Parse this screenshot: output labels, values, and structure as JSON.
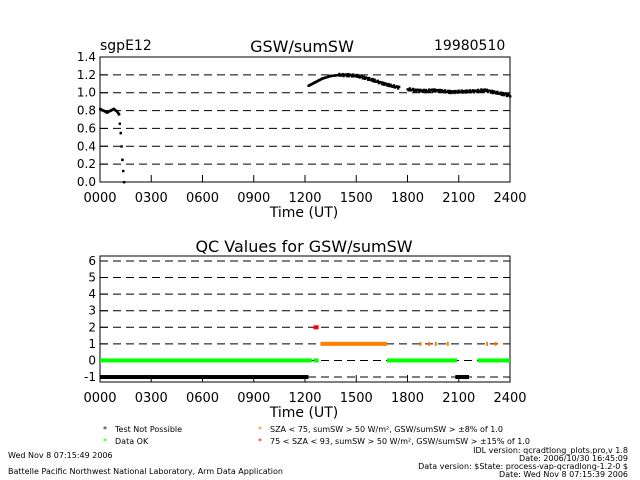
{
  "header": {
    "site": "sgpE12",
    "date": "19980510"
  },
  "chart_data": [
    {
      "type": "scatter",
      "title": "GSW/sumSW",
      "xlabel": "Time (UT)",
      "ylabel": "",
      "xlim": [
        0,
        2400
      ],
      "ylim": [
        0.0,
        1.4
      ],
      "x_tick_labels": [
        "0000",
        "0300",
        "0600",
        "0900",
        "1200",
        "1500",
        "1800",
        "2100",
        "2400"
      ],
      "y_tick_labels": [
        "0.0",
        "0.2",
        "0.4",
        "0.6",
        "0.8",
        "1.0",
        "1.2",
        "1.4"
      ],
      "grid": "horizontal dashed",
      "color": "#000000",
      "curve_knots": [
        [
          0,
          0.82
        ],
        [
          20,
          0.8
        ],
        [
          40,
          0.78
        ],
        [
          60,
          0.8
        ],
        [
          80,
          0.82
        ],
        [
          100,
          0.79
        ],
        [
          110,
          0.76
        ],
        [
          120,
          0.55
        ],
        [
          130,
          0.25
        ],
        [
          140,
          0.0
        ],
        [
          1220,
          1.08
        ],
        [
          1260,
          1.12
        ],
        [
          1300,
          1.16
        ],
        [
          1350,
          1.19
        ],
        [
          1400,
          1.2
        ],
        [
          1450,
          1.2
        ],
        [
          1500,
          1.19
        ],
        [
          1550,
          1.17
        ],
        [
          1600,
          1.14
        ],
        [
          1650,
          1.11
        ],
        [
          1700,
          1.08
        ],
        [
          1750,
          1.06
        ],
        [
          1800,
          1.04
        ],
        [
          1850,
          1.03
        ],
        [
          1900,
          1.02
        ],
        [
          1950,
          1.03
        ],
        [
          2000,
          1.02
        ],
        [
          2050,
          1.01
        ],
        [
          2200,
          1.02
        ],
        [
          2250,
          1.03
        ],
        [
          2300,
          1.01
        ],
        [
          2350,
          0.99
        ],
        [
          2400,
          0.97
        ]
      ]
    },
    {
      "type": "scatter",
      "title": "QC Values for GSW/sumSW",
      "xlabel": "Time (UT)",
      "ylabel": "",
      "xlim": [
        0,
        2400
      ],
      "ylim": [
        -1.3,
        6.3
      ],
      "x_tick_labels": [
        "0000",
        "0300",
        "0600",
        "0900",
        "1200",
        "1500",
        "1800",
        "2100",
        "2400"
      ],
      "y_tick_labels": [
        "-1",
        "0",
        "1",
        "2",
        "3",
        "4",
        "5",
        "6"
      ],
      "grid": "horizontal dashed",
      "series": [
        {
          "color": "#00ff00",
          "value": 0,
          "segments": [
            [
              0,
              1240
            ],
            [
              1250,
              1280
            ],
            [
              1680,
              2090
            ],
            [
              2210,
              2400
            ]
          ]
        },
        {
          "color": "#ff7f00",
          "value": 1,
          "segments": [
            [
              1290,
              1680
            ],
            [
              1870,
              1880
            ],
            [
              1920,
              1930
            ],
            [
              1960,
              1970
            ],
            [
              2030,
              2040
            ],
            [
              2260,
              2270
            ],
            [
              2310,
              2320
            ]
          ]
        },
        {
          "color": "#ff0000",
          "value": 2,
          "segments": [
            [
              1250,
              1280
            ]
          ]
        },
        {
          "color": "#000000",
          "value": -1,
          "segments": [
            [
              0,
              1220
            ],
            [
              2080,
              2160
            ]
          ]
        }
      ]
    }
  ],
  "legend": [
    {
      "color": "#000000",
      "text": "Test Not Possible"
    },
    {
      "color": "#00ff00",
      "text": "Data OK"
    },
    {
      "color": "#ff7f00",
      "text": "SZA < 75, sumSW > 50 W/m², GSW/sumSW > ±8% of 1.0"
    },
    {
      "color": "#ff0000",
      "text": "75 < SZA < 93, sumSW > 50 W/m², GSW/sumSW > ±15% of 1.0"
    }
  ],
  "footer": {
    "timestamp": "Wed Nov  8 07:15:49 2006",
    "credit": "Battelle Pacific Northwest National Laboratory, Arm Data Application",
    "idl_version": "IDL version: qcradtlong_plots.pro,v 1.8",
    "date_line": "Date: 2006/10/30 16:45:09",
    "data_version": "Data version: $State: process-vap-qcradlong-1.2-0 $",
    "date_line2": "Date: Wed Nov  8 07:15:39 2006"
  }
}
